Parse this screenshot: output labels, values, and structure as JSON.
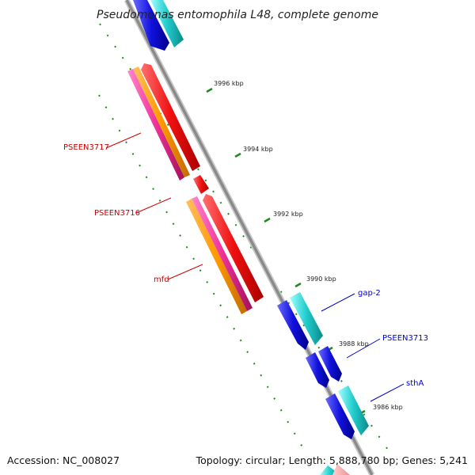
{
  "title": "Pseudomonas entomophila L48, complete genome",
  "footer": {
    "accession": "Accession: NC_008027",
    "summary": "Topology: circular; Length: 5,888,780 bp; Genes: 5,241"
  },
  "ticks": [
    "3996 kbp",
    "3994 kbp",
    "3992 kbp",
    "3990 kbp",
    "3988 kbp",
    "3986 kbp"
  ],
  "gene_labels": {
    "pseen3717": "PSEEN3717",
    "pseen3716": "PSEEN3716",
    "mfd": "mfd",
    "gap2": "gap-2",
    "pseen3713": "PSEEN3713",
    "stha": "sthA"
  },
  "colors": {
    "backbone": "#8a8a8a",
    "tick_dots": "#1e8a1e",
    "cds_forward": "#ee1111",
    "cds_reverse": "#1111dd",
    "orf_forward": "#ff9900",
    "orf_reverse": "#22cccc",
    "rrna_pink": "#ee3399",
    "label_forward": "#cc0000",
    "label_reverse": "#0000cc"
  }
}
